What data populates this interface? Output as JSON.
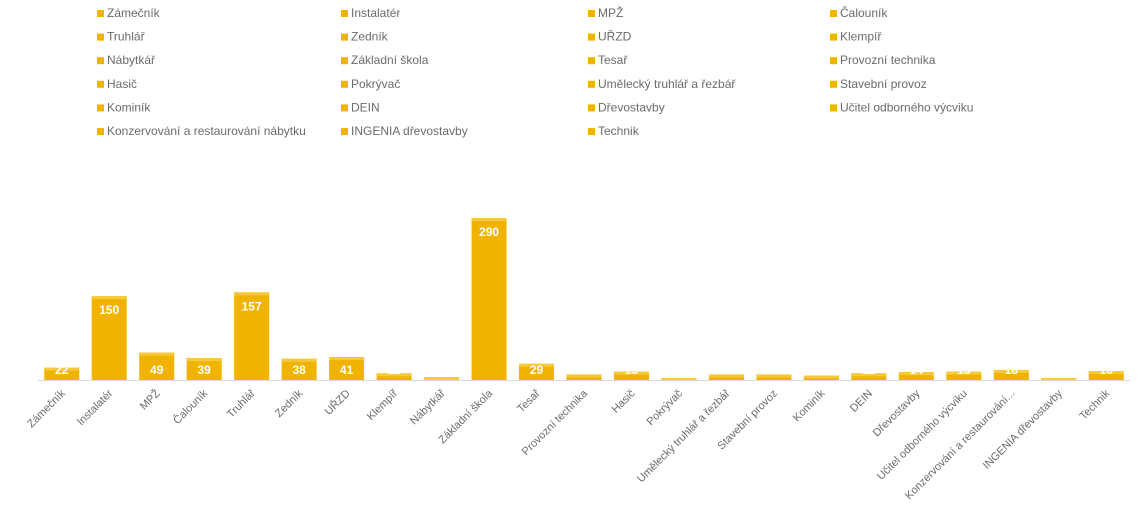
{
  "colors": {
    "bar": "#F0B400",
    "bar_top": "#F7C93A",
    "shadow": "#d9d9d9",
    "axis": "#d9d9d9",
    "label_text": "#6b6b6b",
    "value_text": "#ffffff"
  },
  "chart_data": {
    "type": "bar",
    "title": "",
    "xlabel": "",
    "ylabel": "",
    "grid": false,
    "legend_position": "top",
    "ylim": [
      0,
      300
    ],
    "categories": [
      "Zámečník",
      "Instalatér",
      "MPŽ",
      "Čalouník",
      "Truhlář",
      "Zedník",
      "UŘZD",
      "Klempíř",
      "Nábytkář",
      "Základní škola",
      "Tesař",
      "Provozní technika",
      "Hasič",
      "Pokrývač",
      "Umělecký truhlář a řezbář",
      "Stavební provoz",
      "Kominík",
      "DEIN",
      "Dřevostavby",
      "Učitel odborného výcviku",
      "Konzervování a restaurování...",
      "INGENIA dřevostavby",
      "Technik"
    ],
    "values": [
      22,
      150,
      49,
      39,
      157,
      38,
      41,
      12,
      5,
      290,
      29,
      10,
      15,
      2,
      10,
      10,
      8,
      12,
      14,
      15,
      18,
      1,
      16
    ],
    "legend": [
      "Zámečník",
      "Instalatér",
      "MPŽ",
      "Čalouník",
      "Truhlář",
      "Zedník",
      "UŘZD",
      "Klempíř",
      "Nábytkář",
      "Základní škola",
      "Tesař",
      "Provozní technika",
      "Hasič",
      "Pokrývač",
      "Umělecký truhlář a řezbář",
      "Stavební provoz",
      "Kominík",
      "DEIN",
      "Dřevostavby",
      "Učitel odborného výcviku",
      "Konzervování a restaurování nábytku",
      "INGENIA dřevostavby",
      "Technik"
    ]
  }
}
